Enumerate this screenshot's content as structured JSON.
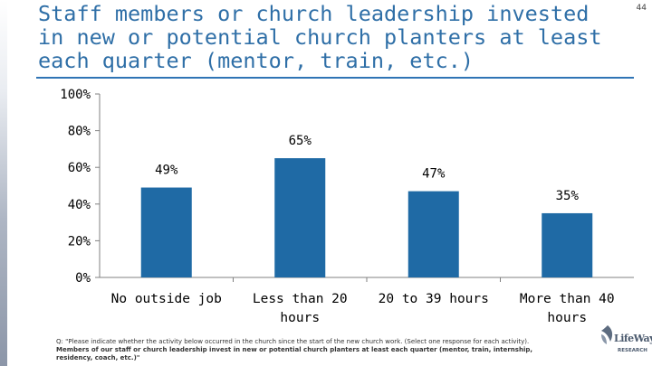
{
  "slide": {
    "title": "Staff members or church leadership invested\nin new or potential church planters at least\neach quarter (mentor, train, etc.)",
    "number": "44",
    "footnote_q": "Q: \"Please indicate whether the activity below occurred in the church since the start of the new church work. (Select one response for each activity). ",
    "footnote_bold": "Members of our staff or church leadership invest in new or potential church planters at least each quarter (mentor, train, internship, residency, coach, etc.)\"",
    "logo_name": "LifeWay",
    "logo_sub": "RESEARCH"
  },
  "colors": {
    "bar": "#1f6aa5",
    "axis": "#808080",
    "text": "#000000",
    "title": "#2f6fa7"
  },
  "chart_data": {
    "type": "bar",
    "title": "Staff members or church leadership invested in new or potential church planters at least each quarter (mentor, train, etc.)",
    "categories": [
      [
        "No outside job"
      ],
      [
        "Less than 20",
        "hours"
      ],
      [
        "20 to 39 hours"
      ],
      [
        "More than 40",
        "hours"
      ]
    ],
    "values": [
      49,
      65,
      47,
      35
    ],
    "data_labels": [
      "49%",
      "65%",
      "47%",
      "35%"
    ],
    "ylim": [
      0,
      100
    ],
    "yticks": [
      0,
      20,
      40,
      60,
      80,
      100
    ],
    "ytick_labels": [
      "0%",
      "20%",
      "40%",
      "60%",
      "80%",
      "100%"
    ],
    "xlabel": "",
    "ylabel": "",
    "grid": false,
    "legend": "none"
  }
}
